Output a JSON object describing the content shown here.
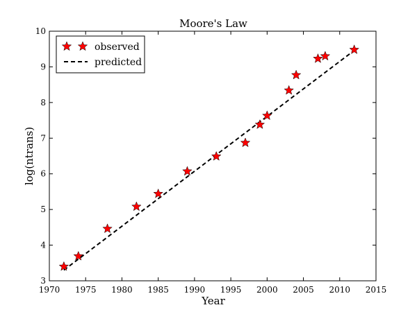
{
  "chart_data": {
    "type": "scatter",
    "title": "Moore's Law",
    "xlabel": "Year",
    "ylabel": "log(ntrans)",
    "xlim": [
      1970,
      2015
    ],
    "ylim": [
      3,
      10
    ],
    "xticks": [
      "1970",
      "1975",
      "1980",
      "1985",
      "1990",
      "1995",
      "2000",
      "2005",
      "2010",
      "2015"
    ],
    "yticks": [
      "3",
      "4",
      "5",
      "6",
      "7",
      "8",
      "9",
      "10"
    ],
    "legend_position": "top-left",
    "series": [
      {
        "name": "observed",
        "marker": "star",
        "color": "#ff0000",
        "x": [
          1972,
          1974,
          1978,
          1982,
          1985,
          1989,
          1993,
          1997,
          1999,
          2000,
          2003,
          2004,
          2007,
          2008,
          2012
        ],
        "y": [
          3.4,
          3.69,
          4.46,
          5.08,
          5.44,
          6.07,
          6.49,
          6.87,
          7.38,
          7.63,
          8.34,
          8.77,
          9.23,
          9.3,
          9.48
        ]
      },
      {
        "name": "predicted",
        "style": "dashed",
        "color": "#000000",
        "x": [
          1972,
          2012
        ],
        "y": [
          3.3,
          9.46
        ]
      }
    ]
  }
}
